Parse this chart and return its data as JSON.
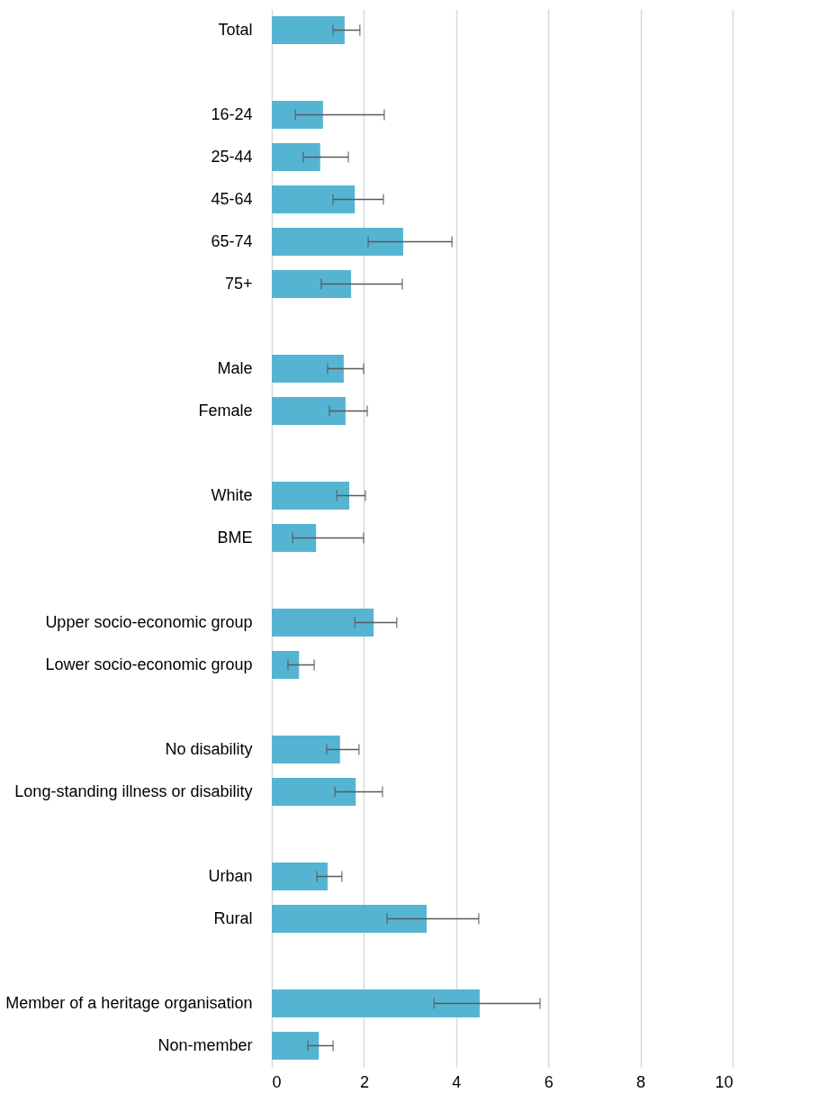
{
  "chart_data": {
    "type": "bar",
    "orientation": "horizontal",
    "categories": [
      "Total",
      null,
      "16-24",
      "25-44",
      "45-64",
      "65-74",
      "75+",
      null,
      "Male",
      "Female",
      null,
      "White",
      "BME",
      null,
      "Upper socio-economic group",
      "Lower socio-economic group",
      null,
      "No disability",
      "Long-standing illness or disability",
      null,
      "Urban",
      "Rural",
      null,
      "Member of a heritage organisation",
      "Non-member"
    ],
    "values": [
      1.58,
      null,
      1.11,
      1.05,
      1.8,
      2.85,
      1.72,
      null,
      1.56,
      1.6,
      null,
      1.68,
      0.96,
      null,
      2.21,
      0.59,
      null,
      1.48,
      1.82,
      null,
      1.21,
      3.36,
      null,
      4.51,
      1.02
    ],
    "errors": [
      [
        1.33,
        1.91
      ],
      null,
      [
        0.51,
        2.44
      ],
      [
        0.68,
        1.66
      ],
      [
        1.33,
        2.42
      ],
      [
        2.09,
        3.91
      ],
      [
        1.07,
        2.83
      ],
      null,
      [
        1.21,
        1.99
      ],
      [
        1.25,
        2.07
      ],
      null,
      [
        1.41,
        2.03
      ],
      [
        0.45,
        1.99
      ],
      null,
      [
        1.8,
        2.71
      ],
      [
        0.35,
        0.92
      ],
      null,
      [
        1.19,
        1.89
      ],
      [
        1.37,
        2.4
      ],
      null,
      [
        0.98,
        1.52
      ],
      [
        2.5,
        4.49
      ],
      null,
      [
        3.52,
        5.82
      ],
      [
        0.78,
        1.33
      ]
    ],
    "color": "#56b4d3",
    "xlim": [
      0,
      10
    ],
    "xticks": [
      0,
      2,
      4,
      6,
      8,
      10
    ],
    "grid": "x"
  }
}
